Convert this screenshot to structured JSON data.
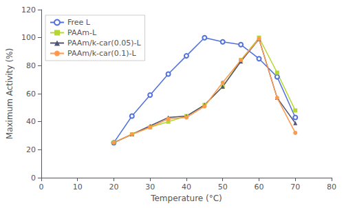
{
  "chart_data": {
    "type": "line",
    "xlabel": "Temperature (°C)",
    "ylabel": "Maximum Activity (%)",
    "xlim": [
      0,
      80
    ],
    "ylim": [
      0,
      120
    ],
    "xticks": [
      0,
      10,
      20,
      30,
      40,
      50,
      60,
      70,
      80
    ],
    "yticks": [
      0,
      20,
      40,
      60,
      80,
      100,
      120
    ],
    "grid": false,
    "legend": "upper left",
    "line_style": "solid",
    "series": [
      {
        "name": "Free L",
        "marker": "circle-open",
        "x": [
          20,
          25,
          30,
          35,
          40,
          45,
          50,
          55,
          60,
          65,
          70
        ],
        "values": [
          25,
          44,
          59,
          74,
          87,
          100,
          97,
          95,
          85,
          72,
          43
        ]
      },
      {
        "name": "PAAm-L",
        "marker": "square",
        "x": [
          20,
          25,
          30,
          35,
          40,
          45,
          50,
          55,
          60,
          65,
          70
        ],
        "values": [
          25,
          31,
          36,
          40,
          44,
          52,
          65,
          84,
          100,
          75,
          48
        ]
      },
      {
        "name": "PAAm/k-car(0.05)-L",
        "marker": "triangle",
        "x": [
          20,
          25,
          30,
          35,
          40,
          45,
          50,
          55,
          60,
          65,
          70
        ],
        "values": [
          25,
          31,
          37,
          43,
          44,
          52,
          65,
          83,
          99,
          57,
          39
        ]
      },
      {
        "name": "PAAm/k-car(0.1)-L",
        "marker": "circle",
        "x": [
          20,
          25,
          30,
          35,
          40,
          45,
          50,
          55,
          60,
          65,
          70
        ],
        "values": [
          25,
          31,
          36,
          42,
          43,
          51,
          68,
          84,
          99,
          57,
          32
        ]
      }
    ]
  }
}
